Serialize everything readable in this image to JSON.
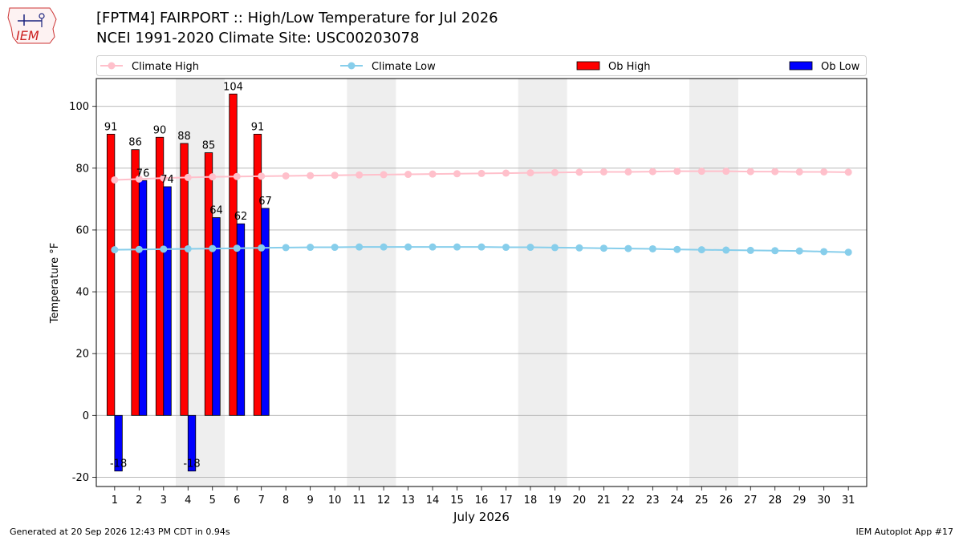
{
  "header": {
    "title_line1": "[FPTM4] FAIRPORT :: High/Low Temperature for Jul 2026",
    "title_line2": "NCEI 1991-2020 Climate Site: USC00203078",
    "logo_text": "IEM"
  },
  "footer": {
    "left": "Generated at 20 Sep 2026 12:43 PM CDT in 0.94s",
    "right": "IEM Autoplot App #17"
  },
  "colors": {
    "climate_high": "#ffc0cb",
    "climate_low": "#87ceeb",
    "ob_high": "#ff0000",
    "ob_low": "#0000ff",
    "weekend_shade": "#eeeeee",
    "grid": "#b0b0b0"
  },
  "chart_data": {
    "type": "bar",
    "xlabel": "July 2026",
    "ylabel": "Temperature °F",
    "ylim": [
      -23,
      109
    ],
    "yticks": [
      -20,
      0,
      20,
      40,
      60,
      80,
      100
    ],
    "grid": "horizontal",
    "legend_position": "top",
    "categories": [
      "1",
      "2",
      "3",
      "4",
      "5",
      "6",
      "7",
      "8",
      "9",
      "10",
      "11",
      "12",
      "13",
      "14",
      "15",
      "16",
      "17",
      "18",
      "19",
      "20",
      "21",
      "22",
      "23",
      "24",
      "25",
      "26",
      "27",
      "28",
      "29",
      "30",
      "31"
    ],
    "weekend_spans": [
      [
        4,
        5
      ],
      [
        11,
        12
      ],
      [
        18,
        19
      ],
      [
        25,
        26
      ]
    ],
    "series": [
      {
        "name": "Climate High",
        "kind": "line",
        "values": [
          76.2,
          76.5,
          76.8,
          77.0,
          77.2,
          77.3,
          77.4,
          77.5,
          77.6,
          77.7,
          77.8,
          77.9,
          78.0,
          78.1,
          78.2,
          78.3,
          78.4,
          78.5,
          78.6,
          78.7,
          78.8,
          78.8,
          78.9,
          79.0,
          79.0,
          79.0,
          78.9,
          78.9,
          78.8,
          78.8,
          78.7
        ]
      },
      {
        "name": "Climate Low",
        "kind": "line",
        "values": [
          53.6,
          53.7,
          53.8,
          53.9,
          54.0,
          54.1,
          54.2,
          54.3,
          54.4,
          54.4,
          54.5,
          54.5,
          54.5,
          54.5,
          54.5,
          54.5,
          54.4,
          54.4,
          54.3,
          54.2,
          54.1,
          54.0,
          53.9,
          53.7,
          53.6,
          53.5,
          53.4,
          53.3,
          53.2,
          53.0,
          52.8
        ]
      },
      {
        "name": "Ob High",
        "kind": "bar",
        "values": [
          91,
          86,
          90,
          88,
          85,
          104,
          91,
          null,
          null,
          null,
          null,
          null,
          null,
          null,
          null,
          null,
          null,
          null,
          null,
          null,
          null,
          null,
          null,
          null,
          null,
          null,
          null,
          null,
          null,
          null,
          null
        ]
      },
      {
        "name": "Ob Low",
        "kind": "bar",
        "values": [
          -18,
          76,
          74,
          -18,
          64,
          62,
          67,
          null,
          null,
          null,
          null,
          null,
          null,
          null,
          null,
          null,
          null,
          null,
          null,
          null,
          null,
          null,
          null,
          null,
          null,
          null,
          null,
          null,
          null,
          null,
          null
        ]
      }
    ]
  }
}
